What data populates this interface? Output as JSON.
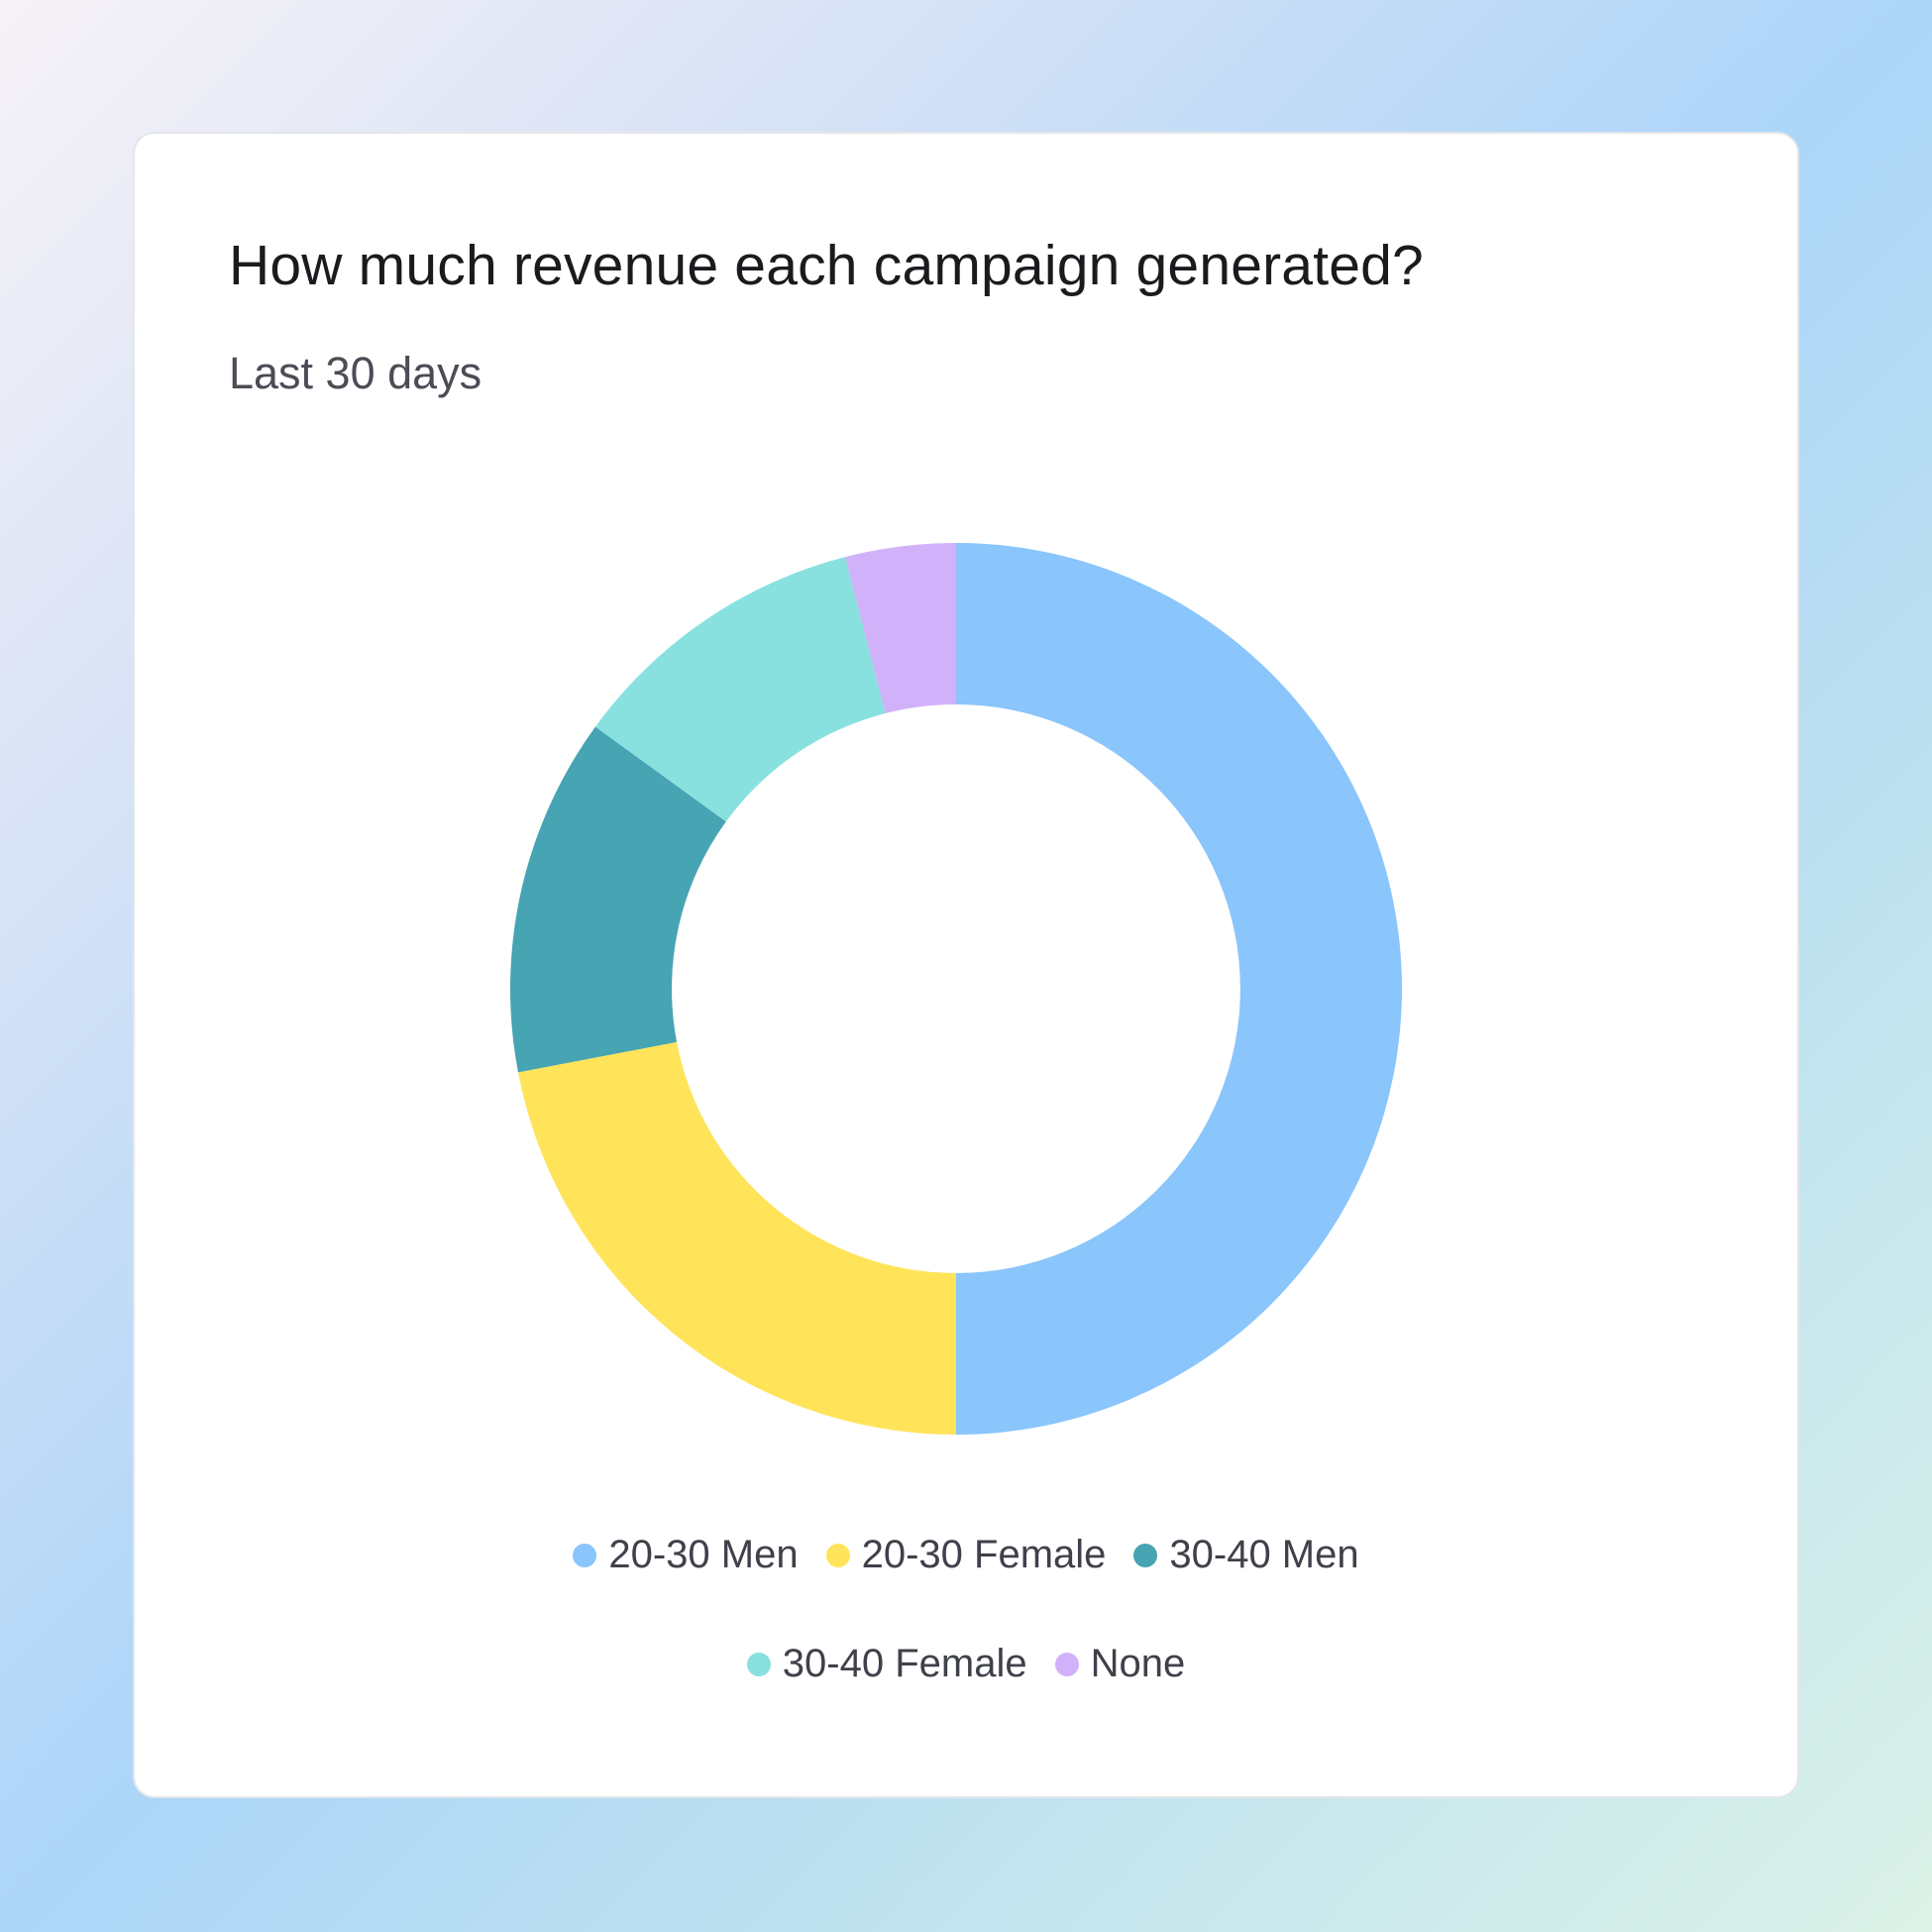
{
  "chart_data": {
    "type": "pie",
    "variant": "donut",
    "title": "How much revenue each campaign generated?",
    "subtitle": "Last 30 days",
    "categories": [
      "20-30 Men",
      "20-30 Female",
      "30-40 Men",
      "30-40 Female",
      "None"
    ],
    "values": [
      50,
      22,
      13,
      11,
      4
    ],
    "colors": [
      "#8ac5fb",
      "#ffe45a",
      "#46a4b3",
      "#88e1df",
      "#d1b2fa"
    ],
    "legend_position": "bottom"
  }
}
